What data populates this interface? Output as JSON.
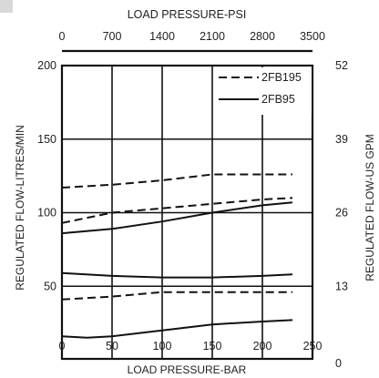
{
  "chart_data": {
    "type": "line",
    "top_axis": {
      "label": "LOAD PRESSURE-PSI",
      "ticks": [
        "0",
        "700",
        "1400",
        "2100",
        "2800",
        "3500"
      ],
      "range": [
        0,
        3500
      ]
    },
    "x_axis": {
      "label": "LOAD PRESSURE-BAR",
      "ticks": [
        "0",
        "50",
        "100",
        "150",
        "200",
        "250"
      ],
      "range": [
        0,
        250
      ]
    },
    "y_axis": {
      "label": "REGULATED FLOW-LITRES/MIN",
      "ticks": [
        "50",
        "100",
        "150",
        "200"
      ],
      "range": [
        0,
        200
      ]
    },
    "y2_axis": {
      "label": "REGULATED FLOW-US GPM",
      "ticks": [
        "0",
        "13",
        "26",
        "39",
        "52"
      ],
      "range": [
        0,
        52
      ]
    },
    "grid": true,
    "legend": {
      "position": "top-right",
      "entries": [
        {
          "label": "2FB195",
          "style": "dashed"
        },
        {
          "label": "2FB95",
          "style": "solid"
        }
      ]
    },
    "series": [
      {
        "name": "2FB195",
        "style": "dashed",
        "x": [
          0,
          50,
          100,
          150,
          200,
          230
        ],
        "y": [
          117,
          119,
          122,
          126,
          126,
          126
        ]
      },
      {
        "name": "2FB195",
        "style": "dashed",
        "x": [
          0,
          50,
          100,
          150,
          200,
          230
        ],
        "y": [
          93,
          100,
          103,
          106,
          109,
          110
        ]
      },
      {
        "name": "2FB95",
        "style": "solid",
        "x": [
          0,
          50,
          100,
          150,
          200,
          230
        ],
        "y": [
          86,
          89,
          94,
          100,
          105,
          107
        ]
      },
      {
        "name": "2FB95",
        "style": "solid",
        "x": [
          0,
          50,
          100,
          150,
          200,
          230
        ],
        "y": [
          59,
          57,
          56,
          56,
          57,
          58
        ]
      },
      {
        "name": "2FB195",
        "style": "dashed",
        "x": [
          0,
          50,
          100,
          150,
          200,
          230
        ],
        "y": [
          41,
          43,
          46,
          46,
          46,
          46
        ]
      },
      {
        "name": "2FB95",
        "style": "solid",
        "x": [
          0,
          25,
          50,
          100,
          150,
          200,
          230
        ],
        "y": [
          16,
          15,
          16,
          20,
          24,
          26,
          27
        ]
      }
    ],
    "colors": {
      "line": "#111111",
      "grid": "#111111",
      "tab": "#d9d9d9"
    }
  }
}
